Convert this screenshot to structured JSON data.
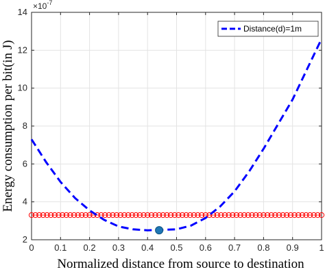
{
  "chart_data": {
    "type": "line",
    "xlabel": "Normalized distance from source to destination",
    "ylabel": "Energy consumption per bit(in J)",
    "y_exponent_label": "×10",
    "y_exponent_power": "-7",
    "xlim": [
      0,
      1
    ],
    "ylim": [
      2,
      14
    ],
    "xticks": [
      "0",
      "0.1",
      "0.2",
      "0.3",
      "0.4",
      "0.5",
      "0.6",
      "0.7",
      "0.8",
      "0.9",
      "1"
    ],
    "yticks": [
      "2",
      "4",
      "6",
      "8",
      "10",
      "12",
      "14"
    ],
    "grid": true,
    "legend_position": "top-right",
    "series": [
      {
        "name": "Distance(d)=1m",
        "style": "dashed",
        "color": "#0000ff",
        "x": [
          0,
          0.05,
          0.1,
          0.15,
          0.2,
          0.25,
          0.3,
          0.35,
          0.4,
          0.45,
          0.5,
          0.55,
          0.6,
          0.65,
          0.7,
          0.75,
          0.8,
          0.85,
          0.9,
          0.95,
          1.0
        ],
        "y": [
          7.3,
          6.1,
          5.05,
          4.2,
          3.55,
          3.05,
          2.7,
          2.55,
          2.5,
          2.52,
          2.55,
          2.75,
          3.15,
          3.75,
          4.55,
          5.6,
          6.8,
          8.1,
          9.4,
          11.0,
          12.6
        ]
      },
      {
        "name": "",
        "style": "circle-markers",
        "color": "#ff0000",
        "constant_y": 3.3
      },
      {
        "name": "",
        "style": "point",
        "color": "#1f77b4",
        "x": [
          0.44
        ],
        "y": [
          2.5
        ]
      }
    ]
  }
}
